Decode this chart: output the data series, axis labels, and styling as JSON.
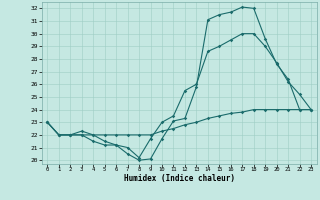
{
  "xlabel": "Humidex (Indice chaleur)",
  "bg_color": "#c5e8e2",
  "line_color": "#1a6b6b",
  "grid_color": "#9ecec5",
  "xlim": [
    -0.5,
    23.5
  ],
  "ylim": [
    19.7,
    32.5
  ],
  "yticks": [
    20,
    21,
    22,
    23,
    24,
    25,
    26,
    27,
    28,
    29,
    30,
    31,
    32
  ],
  "xticks": [
    0,
    1,
    2,
    3,
    4,
    5,
    6,
    7,
    8,
    9,
    10,
    11,
    12,
    13,
    14,
    15,
    16,
    17,
    18,
    19,
    20,
    21,
    22,
    23
  ],
  "line1_y": [
    23.0,
    22.0,
    22.0,
    22.0,
    21.5,
    21.2,
    21.2,
    20.5,
    20.0,
    20.1,
    21.7,
    23.1,
    23.3,
    25.8,
    31.1,
    31.5,
    31.7,
    32.1,
    32.0,
    29.6,
    27.6,
    26.4,
    24.0,
    24.0
  ],
  "line2_y": [
    23.0,
    22.0,
    22.0,
    22.3,
    22.0,
    21.5,
    21.2,
    21.0,
    20.2,
    21.7,
    23.0,
    23.5,
    25.5,
    26.0,
    28.6,
    29.0,
    29.5,
    30.0,
    30.0,
    29.0,
    27.7,
    26.2,
    25.2,
    24.0
  ],
  "line3_y": [
    23.0,
    22.0,
    22.0,
    22.0,
    22.0,
    22.0,
    22.0,
    22.0,
    22.0,
    22.0,
    22.3,
    22.5,
    22.8,
    23.0,
    23.3,
    23.5,
    23.7,
    23.8,
    24.0,
    24.0,
    24.0,
    24.0,
    24.0,
    24.0
  ]
}
